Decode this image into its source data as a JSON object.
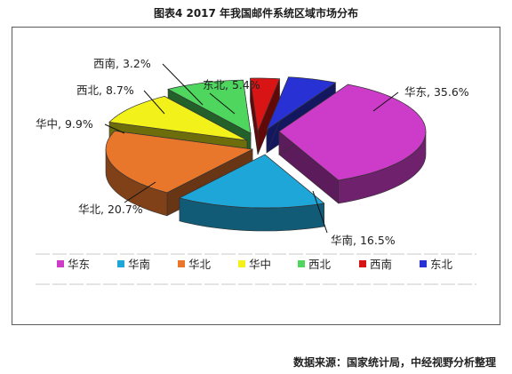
{
  "title": "图表4    2017 年我国邮件系统区域市场分布",
  "source": "数据来源：国家统计局，中经视野分析整理",
  "chart_data": {
    "type": "pie",
    "title": "",
    "legend_position": "bottom",
    "categories": [
      "华东",
      "华南",
      "华北",
      "华中",
      "西北",
      "西南",
      "东北"
    ],
    "values": [
      35.6,
      16.5,
      20.7,
      9.9,
      8.7,
      3.2,
      5.4
    ],
    "labels": [
      "华东, 35.6%",
      "华南, 16.5%",
      "华北, 20.7%",
      "华中, 9.9%",
      "西北, 8.7%",
      "西南, 3.2%",
      "东北, 5.4%"
    ],
    "colors": [
      "#cc3cc8",
      "#1fa6d9",
      "#e8772c",
      "#f2f21a",
      "#4fd65e",
      "#d81414",
      "#2832d4"
    ]
  }
}
